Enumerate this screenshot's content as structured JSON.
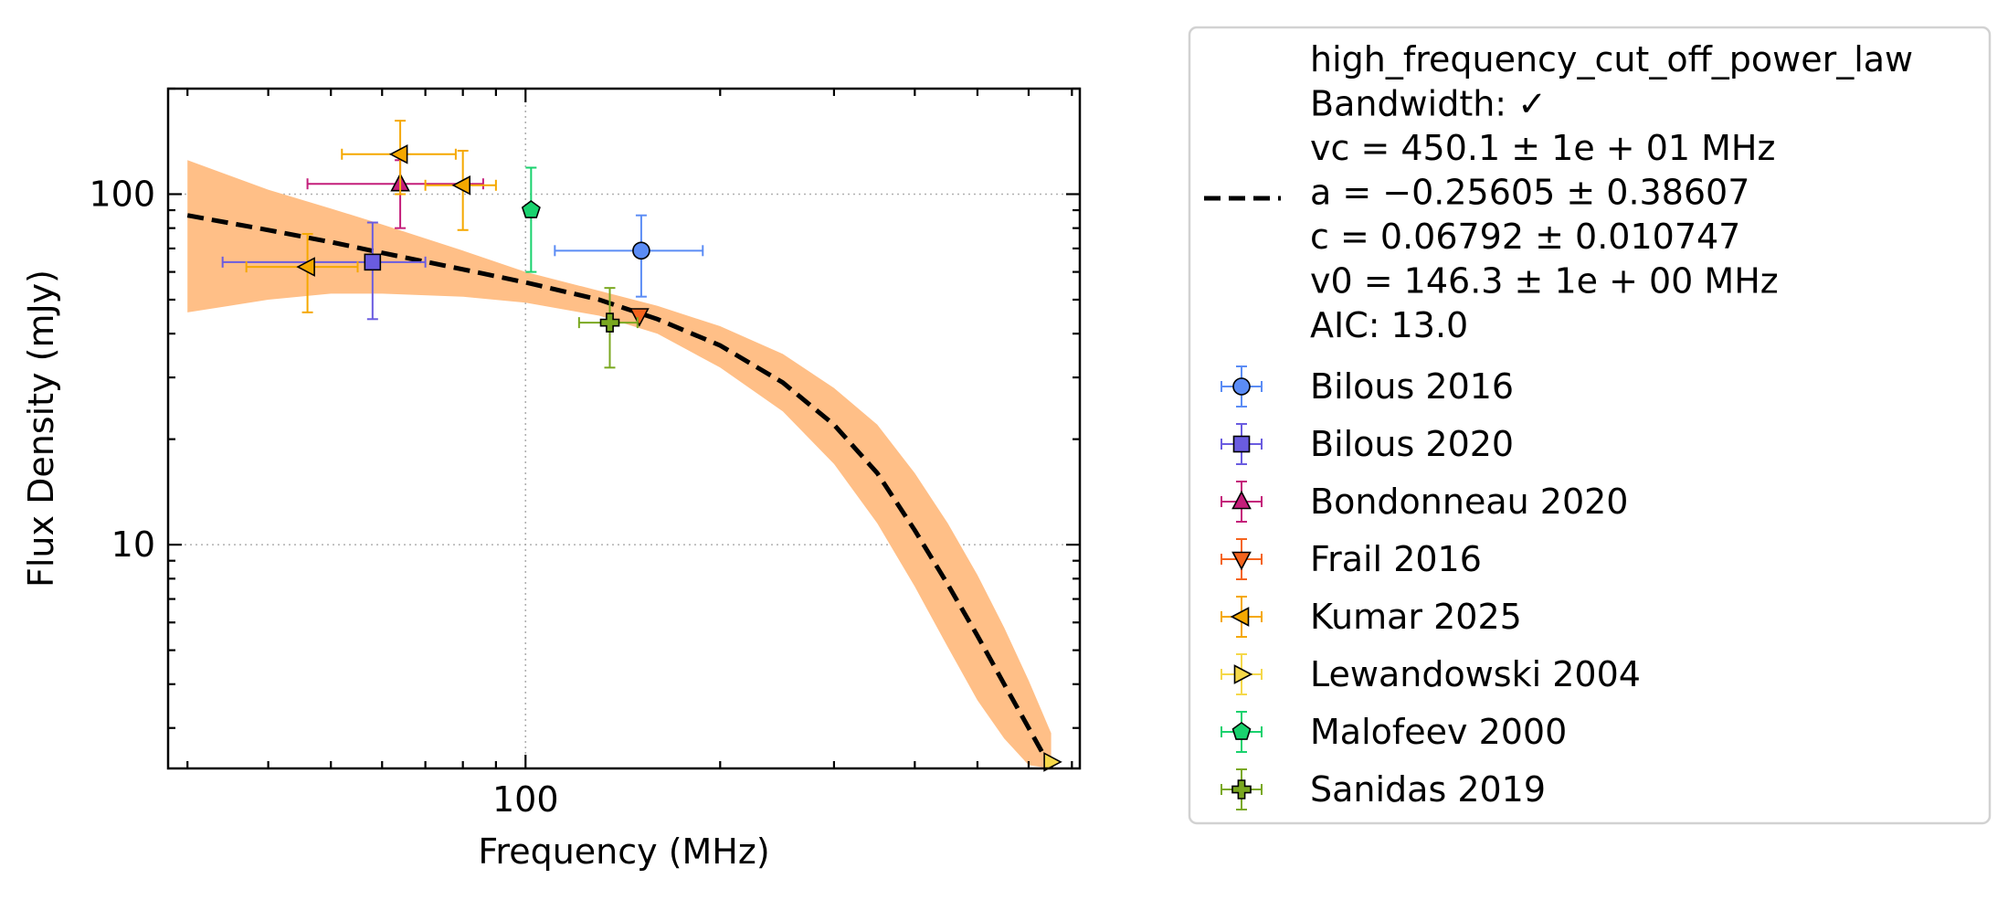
{
  "chart_data": {
    "type": "scatter",
    "xlabel": "Frequency (MHz)",
    "ylabel": "Flux Density (mJy)",
    "x_scale": "log",
    "y_scale": "log",
    "xlim": [
      28,
      720
    ],
    "ylim": [
      2.3,
      200
    ],
    "x_ticks": [
      {
        "value": 100,
        "label": "100"
      }
    ],
    "y_ticks": [
      {
        "value": 10,
        "label": "10"
      },
      {
        "value": 100,
        "label": "100"
      }
    ],
    "grid": "major, dotted",
    "legend_position": "outside right",
    "fit": {
      "model": "high_frequency_cut_off_power_law",
      "legend_lines": [
        "high_frequency_cut_off_power_law",
        "Bandwidth: ✓",
        "vc = 450.1 ± 1e + 01 MHz",
        "a = −0.25605 ± 0.38607",
        "c = 0.06792 ± 0.010747",
        "v0 = 146.3 ± 1e + 00 MHz",
        "AIC: 13.0"
      ],
      "params": {
        "vc": 450.1,
        "a": -0.25605,
        "c": 0.06792,
        "v0": 146.3
      },
      "line_color": "#000000",
      "line_style": "dashed",
      "band_color": "#ffbf87",
      "curve": [
        {
          "x": 30,
          "y": 87
        },
        {
          "x": 40,
          "y": 79
        },
        {
          "x": 50,
          "y": 73
        },
        {
          "x": 60,
          "y": 68
        },
        {
          "x": 80,
          "y": 61
        },
        {
          "x": 100,
          "y": 56
        },
        {
          "x": 130,
          "y": 50
        },
        {
          "x": 160,
          "y": 44
        },
        {
          "x": 200,
          "y": 37
        },
        {
          "x": 250,
          "y": 29
        },
        {
          "x": 300,
          "y": 22
        },
        {
          "x": 350,
          "y": 16
        },
        {
          "x": 400,
          "y": 11
        },
        {
          "x": 450,
          "y": 7.7
        },
        {
          "x": 500,
          "y": 5.5
        },
        {
          "x": 550,
          "y": 4
        },
        {
          "x": 600,
          "y": 3
        },
        {
          "x": 650,
          "y": 2.3
        }
      ],
      "band_upper": [
        {
          "x": 30,
          "y": 125
        },
        {
          "x": 40,
          "y": 103
        },
        {
          "x": 50,
          "y": 91
        },
        {
          "x": 60,
          "y": 82
        },
        {
          "x": 80,
          "y": 69
        },
        {
          "x": 100,
          "y": 60
        },
        {
          "x": 130,
          "y": 53
        },
        {
          "x": 160,
          "y": 48
        },
        {
          "x": 200,
          "y": 42
        },
        {
          "x": 250,
          "y": 35
        },
        {
          "x": 300,
          "y": 28
        },
        {
          "x": 350,
          "y": 22
        },
        {
          "x": 400,
          "y": 16
        },
        {
          "x": 450,
          "y": 11.5
        },
        {
          "x": 500,
          "y": 8.2
        },
        {
          "x": 550,
          "y": 5.8
        },
        {
          "x": 600,
          "y": 4.1
        },
        {
          "x": 650,
          "y": 2.9
        }
      ],
      "band_lower": [
        {
          "x": 30,
          "y": 46
        },
        {
          "x": 40,
          "y": 50
        },
        {
          "x": 50,
          "y": 52
        },
        {
          "x": 60,
          "y": 52
        },
        {
          "x": 80,
          "y": 51
        },
        {
          "x": 100,
          "y": 49
        },
        {
          "x": 130,
          "y": 45
        },
        {
          "x": 160,
          "y": 40
        },
        {
          "x": 200,
          "y": 32
        },
        {
          "x": 250,
          "y": 24
        },
        {
          "x": 300,
          "y": 17
        },
        {
          "x": 350,
          "y": 11.5
        },
        {
          "x": 400,
          "y": 7.6
        },
        {
          "x": 450,
          "y": 5.1
        },
        {
          "x": 500,
          "y": 3.6
        },
        {
          "x": 550,
          "y": 2.8
        },
        {
          "x": 600,
          "y": 2.35
        },
        {
          "x": 650,
          "y": 2.3
        }
      ]
    },
    "series": [
      {
        "name": "Bilous 2016",
        "color": "#5b8cf5",
        "marker": "circle",
        "points": [
          {
            "x": 151,
            "y": 69,
            "xerr": [
              40,
              37
            ],
            "yerr": [
              18,
              18
            ]
          }
        ]
      },
      {
        "name": "Bilous 2020",
        "color": "#6a5ce0",
        "marker": "square",
        "points": [
          {
            "x": 58,
            "y": 64,
            "xerr": [
              24,
              12
            ],
            "yerr": [
              20,
              19
            ]
          }
        ]
      },
      {
        "name": "Bondonneau 2020",
        "color": "#c41e7a",
        "marker": "triangle-up",
        "points": [
          {
            "x": 64,
            "y": 107,
            "xerr": [
              18,
              22
            ],
            "yerr": [
              27,
              18
            ]
          }
        ]
      },
      {
        "name": "Frail 2016",
        "color": "#f5641e",
        "marker": "triangle-down",
        "points": [
          {
            "x": 150,
            "y": 45,
            "xerr": [
              0,
              0
            ],
            "yerr": [
              0,
              0
            ]
          }
        ]
      },
      {
        "name": "Kumar 2025",
        "color": "#f5a800",
        "marker": "triangle-left",
        "points": [
          {
            "x": 64,
            "y": 130,
            "xerr": [
              12,
              14
            ],
            "yerr": [
              30,
              32
            ]
          },
          {
            "x": 80,
            "y": 106,
            "xerr": [
              10,
              10
            ],
            "yerr": [
              27,
              27
            ]
          },
          {
            "x": 46,
            "y": 62,
            "xerr": [
              9,
              9
            ],
            "yerr": [
              16,
              15
            ]
          }
        ]
      },
      {
        "name": "Lewandowski 2004",
        "color": "#f5d84a",
        "marker": "triangle-right",
        "points": [
          {
            "x": 650,
            "y": 2.4,
            "xerr": [
              0,
              0
            ],
            "yerr": [
              0,
              0
            ]
          }
        ]
      },
      {
        "name": "Malofeev 2000",
        "color": "#19d26e",
        "marker": "pentagon",
        "points": [
          {
            "x": 102,
            "y": 90,
            "xerr": [
              0,
              0
            ],
            "yerr": [
              30,
              29
            ]
          }
        ]
      },
      {
        "name": "Sanidas 2019",
        "color": "#7aa820",
        "marker": "plus",
        "points": [
          {
            "x": 135,
            "y": 43,
            "xerr": [
              14,
              14
            ],
            "yerr": [
              11,
              11
            ]
          }
        ]
      }
    ]
  }
}
